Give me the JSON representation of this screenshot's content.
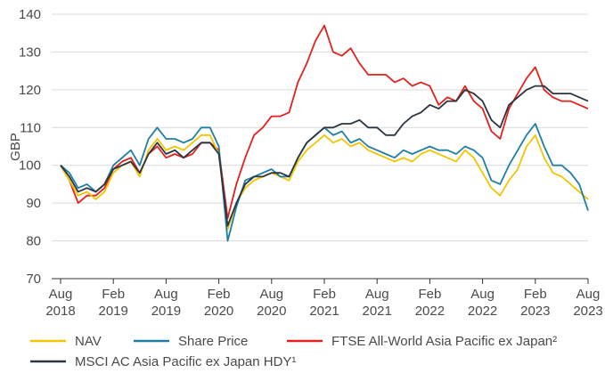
{
  "chart_data": {
    "type": "line",
    "y_label": "GBP",
    "x": [
      "2018-08",
      "2018-09",
      "2018-10",
      "2018-11",
      "2018-12",
      "2019-01",
      "2019-02",
      "2019-03",
      "2019-04",
      "2019-05",
      "2019-06",
      "2019-07",
      "2019-08",
      "2019-09",
      "2019-10",
      "2019-11",
      "2019-12",
      "2020-01",
      "2020-02",
      "2020-03",
      "2020-04",
      "2020-05",
      "2020-06",
      "2020-07",
      "2020-08",
      "2020-09",
      "2020-10",
      "2020-11",
      "2020-12",
      "2021-01",
      "2021-02",
      "2021-03",
      "2021-04",
      "2021-05",
      "2021-06",
      "2021-07",
      "2021-08",
      "2021-09",
      "2021-10",
      "2021-11",
      "2021-12",
      "2022-01",
      "2022-02",
      "2022-03",
      "2022-04",
      "2022-05",
      "2022-06",
      "2022-07",
      "2022-08",
      "2022-09",
      "2022-10",
      "2022-11",
      "2022-12",
      "2023-01",
      "2023-02",
      "2023-03",
      "2023-04",
      "2023-05",
      "2023-06",
      "2023-07",
      "2023-08"
    ],
    "series": [
      {
        "name": "NAV",
        "color": "#f2c500",
        "values": [
          100,
          96,
          92,
          93,
          91,
          93,
          98,
          100,
          101,
          97,
          104,
          107,
          104,
          105,
          104,
          106,
          108,
          108,
          103,
          83,
          90,
          94,
          96,
          97,
          98,
          97,
          96,
          101,
          104,
          106,
          108,
          106,
          107,
          105,
          106,
          104,
          103,
          102,
          101,
          102,
          101,
          103,
          104,
          103,
          102,
          101,
          104,
          102,
          98,
          94,
          92,
          96,
          99,
          105,
          108,
          102,
          98,
          97,
          95,
          93,
          91
        ]
      },
      {
        "name": "Share Price",
        "color": "#1f7ea6",
        "values": [
          100,
          98,
          94,
          95,
          93,
          95,
          100,
          102,
          104,
          100,
          107,
          110,
          107,
          107,
          106,
          107,
          110,
          110,
          105,
          80,
          89,
          96,
          97,
          98,
          99,
          97,
          97,
          102,
          106,
          108,
          110,
          108,
          109,
          106,
          107,
          105,
          104,
          103,
          102,
          104,
          103,
          104,
          105,
          104,
          104,
          103,
          105,
          104,
          102,
          96,
          95,
          100,
          104,
          108,
          111,
          105,
          100,
          100,
          98,
          95,
          88
        ]
      },
      {
        "name": "FTSE All-World Asia Pacific ex Japan²",
        "color": "#e2211c",
        "values": [
          100,
          96,
          90,
          92,
          92,
          94,
          99,
          101,
          102,
          98,
          103,
          105,
          102,
          103,
          102,
          103,
          106,
          106,
          104,
          86,
          95,
          102,
          108,
          110,
          113,
          113,
          114,
          122,
          127,
          133,
          137,
          130,
          129,
          131,
          127,
          124,
          124,
          124,
          122,
          123,
          121,
          122,
          121,
          116,
          118,
          117,
          121,
          117,
          115,
          109,
          107,
          115,
          119,
          123,
          126,
          120,
          118,
          117,
          117,
          116,
          115
        ]
      },
      {
        "name": "MSCI AC Asia Pacific ex Japan HDY¹",
        "color": "#2b3440",
        "values": [
          100,
          97,
          93,
          94,
          93,
          95,
          99,
          100,
          101,
          98,
          103,
          106,
          103,
          104,
          102,
          104,
          106,
          106,
          103,
          84,
          90,
          95,
          97,
          97,
          98,
          98,
          97,
          102,
          106,
          108,
          110,
          110,
          111,
          111,
          112,
          110,
          110,
          108,
          108,
          111,
          113,
          114,
          116,
          115,
          117,
          117,
          120,
          119,
          117,
          112,
          110,
          116,
          118,
          120,
          121,
          121,
          119,
          119,
          119,
          118,
          117
        ]
      }
    ],
    "xticks": [
      {
        "value": "2018-08",
        "label": "Aug 2018"
      },
      {
        "value": "2019-02",
        "label": "Feb 2019"
      },
      {
        "value": "2019-08",
        "label": "Aug 2019"
      },
      {
        "value": "2020-02",
        "label": "Feb 2020"
      },
      {
        "value": "2020-08",
        "label": "Aug 2020"
      },
      {
        "value": "2021-02",
        "label": "Feb 2021"
      },
      {
        "value": "2021-08",
        "label": "Aug 2021"
      },
      {
        "value": "2022-02",
        "label": "Feb 2022"
      },
      {
        "value": "2022-08",
        "label": "Aug 2022"
      },
      {
        "value": "2023-02",
        "label": "Feb 2023"
      },
      {
        "value": "2023-08",
        "label": "Aug 2023"
      }
    ],
    "ylim": [
      70,
      140
    ],
    "yticks": [
      70,
      80,
      90,
      100,
      110,
      120,
      130,
      140
    ],
    "grid": true
  }
}
